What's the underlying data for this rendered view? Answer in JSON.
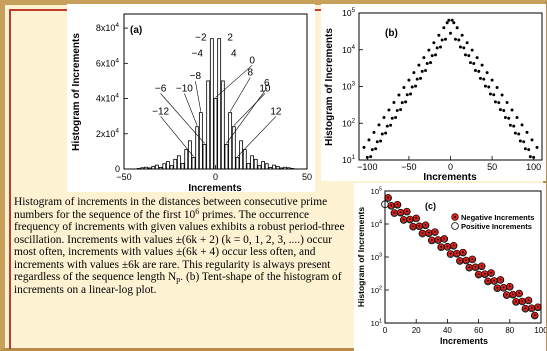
{
  "caption": {
    "part1": "Histogram of increments in the distances between consecutive prime numbers for the sequence of the first 10",
    "sup_exp": "6",
    "part2": " primes. The occurrence frequency of increments with given values exhibits a robust period-three oscillation. Increments with values ±(6k + 2) (k = 0, 1, 2, 3, ....) occur most often, increments with values ±(6k + 4) occur less often, and increments with values ±6k are rare. This regularity is always present regardless of the sequence length N",
    "sub_p": "p",
    "part3": ". (b) Tent-shape of the histogram of increments on a linear-log plot."
  },
  "chart_data": [
    {
      "type": "bar",
      "panel_label": "(a)",
      "xlabel": "Increments",
      "ylabel": "Histogram of Increments",
      "xlim": [
        -50,
        50
      ],
      "ylim": [
        0,
        88000
      ],
      "x_ticks": [
        "−50",
        "0",
        "50"
      ],
      "y_ticks": [
        {
          "value": 0,
          "label": "0"
        },
        {
          "value": 20000,
          "base": "2x10",
          "exp": "4"
        },
        {
          "value": 40000,
          "base": "4x10",
          "exp": "4"
        },
        {
          "value": 60000,
          "base": "6x10",
          "exp": "4"
        },
        {
          "value": 80000,
          "base": "8x10",
          "exp": "4"
        }
      ],
      "x": [
        -42,
        -40,
        -38,
        -36,
        -34,
        -32,
        -30,
        -28,
        -26,
        -24,
        -22,
        -20,
        -18,
        -16,
        -14,
        -12,
        -10,
        -8,
        -6,
        -4,
        -2,
        0,
        2,
        4,
        6,
        8,
        10,
        12,
        14,
        16,
        18,
        20,
        22,
        24,
        26,
        28,
        30,
        32,
        34,
        36,
        38,
        40,
        42
      ],
      "values": [
        300,
        700,
        1000,
        600,
        1500,
        2200,
        900,
        3000,
        4200,
        1900,
        5500,
        7500,
        3200,
        11000,
        16000,
        6500,
        24000,
        32000,
        14000,
        50000,
        74000,
        40000,
        74000,
        50000,
        14000,
        32000,
        24000,
        6500,
        16000,
        11000,
        3200,
        7500,
        5500,
        1900,
        4200,
        3000,
        900,
        2200,
        1500,
        600,
        1000,
        700,
        300
      ],
      "annotations": [
        {
          "text": "−2",
          "x": -2,
          "y": 74000
        },
        {
          "text": "2",
          "x": 2,
          "y": 74000
        },
        {
          "text": "−4",
          "x": -4,
          "y": 50000
        },
        {
          "text": "4",
          "x": 4,
          "y": 50000
        },
        {
          "text": "0",
          "x": 0,
          "y": 40000
        },
        {
          "text": "−8",
          "x": -8,
          "y": 32000
        },
        {
          "text": "8",
          "x": 8,
          "y": 32000
        },
        {
          "text": "−10",
          "x": -10,
          "y": 24000
        },
        {
          "text": "10",
          "x": 10,
          "y": 24000
        },
        {
          "text": "−6",
          "x": -6,
          "y": 14000
        },
        {
          "text": "6",
          "x": 6,
          "y": 14000
        },
        {
          "text": "−12",
          "x": -12,
          "y": 6500
        },
        {
          "text": "12",
          "x": 12,
          "y": 6500
        }
      ]
    },
    {
      "type": "scatter",
      "panel_label": "(b)",
      "xlabel": "Increments",
      "ylabel": "Histogram of Increments",
      "y_scale": "log",
      "xlim": [
        -110,
        110
      ],
      "ylim_log10": [
        1,
        5
      ],
      "x_ticks": [
        "−100",
        "−50",
        "0",
        "50",
        "100"
      ],
      "x_tick_values": [
        -100,
        -50,
        0,
        50,
        100
      ],
      "y_ticks": [
        {
          "value": 1,
          "base": "10",
          "exp": "1"
        },
        {
          "value": 2,
          "base": "10",
          "exp": "2"
        },
        {
          "value": 3,
          "base": "10",
          "exp": "3"
        },
        {
          "value": 4,
          "base": "10",
          "exp": "4"
        },
        {
          "value": 5,
          "base": "10",
          "exp": "5"
        }
      ],
      "decay_left_top": [
        4.87,
        0.0339
      ],
      "decay_left_bottom": [
        4.62,
        0.0355
      ],
      "decay_right_top": [
        4.87,
        0.0339
      ],
      "decay_right_bottom": [
        4.62,
        0.0355
      ],
      "x_range": [
        -106,
        106
      ],
      "step": 2
    },
    {
      "type": "scatter",
      "panel_label": "(c)",
      "xlabel": "Increments",
      "ylabel": "Histogram of Increments",
      "y_scale": "log",
      "xlim": [
        0,
        100
      ],
      "ylim_log10": [
        1,
        5
      ],
      "x_ticks": [
        "0",
        "20",
        "40",
        "60",
        "80",
        "100"
      ],
      "x_tick_values": [
        0,
        20,
        40,
        60,
        80,
        100
      ],
      "y_ticks": [
        {
          "value": 1,
          "base": "10",
          "exp": "1"
        },
        {
          "value": 2,
          "base": "10",
          "exp": "2"
        },
        {
          "value": 3,
          "base": "10",
          "exp": "3"
        },
        {
          "value": 4,
          "base": "10",
          "exp": "4"
        },
        {
          "value": 5,
          "base": "10",
          "exp": "5"
        }
      ],
      "series": [
        {
          "name": "Negative Increments",
          "marker": "filled-red-circle"
        },
        {
          "name": "Positive Increments",
          "marker": "open-circle"
        }
      ],
      "x_range": [
        2,
        98
      ],
      "step": 2
    }
  ],
  "colors": {
    "background": "#fdf2d2",
    "frame_outer": "#c7a15c",
    "frame_inner": "#c13a2c",
    "negative_marker": "#e0201a"
  }
}
